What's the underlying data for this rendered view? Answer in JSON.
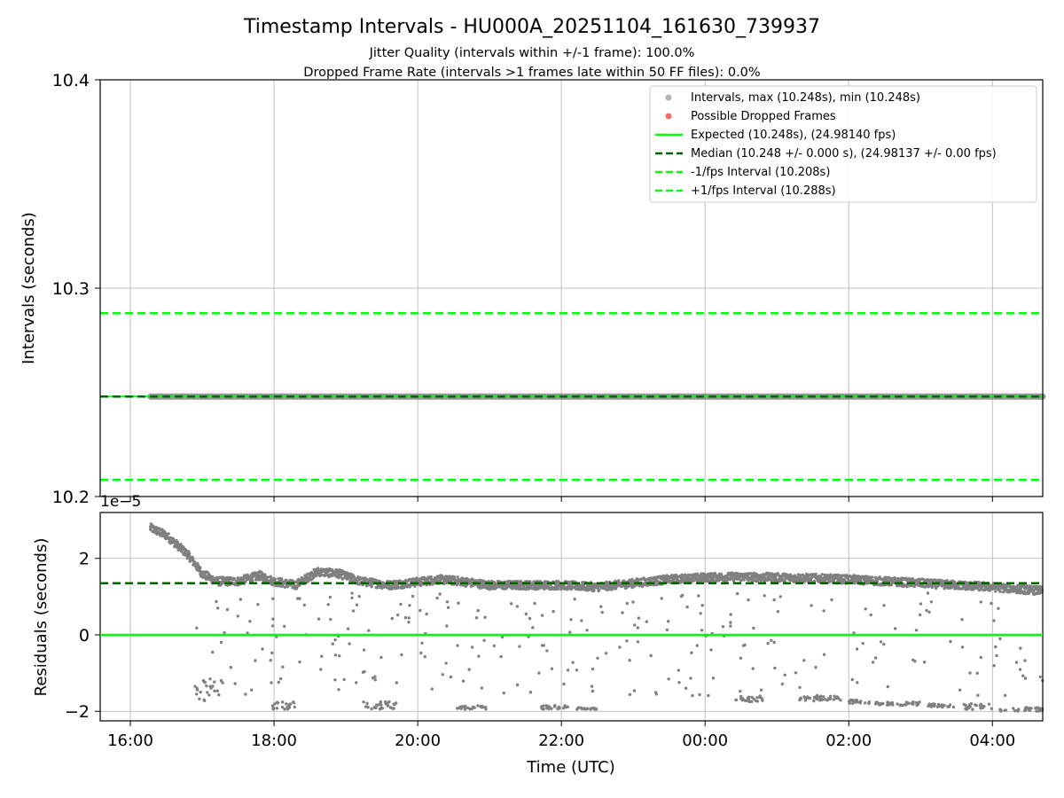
{
  "chart_data": [
    {
      "type": "scatter",
      "panel": "top",
      "title": "Timestamp Intervals - HU000A_20251104_161630_739937",
      "subtitle_lines": [
        "Jitter Quality (intervals within +/-1 frame): 100.0%",
        "Dropped Frame Rate (intervals >1 frames late within 50 FF files): 0.0%"
      ],
      "ylabel": "Intervals (seconds)",
      "ylim": [
        10.2,
        10.4
      ],
      "yticks": [
        10.2,
        10.3,
        10.4
      ],
      "ytick_labels": [
        "10.2",
        "10.3",
        "10.4"
      ],
      "grid": true,
      "legend_position": "top-right",
      "series": [
        {
          "name": "Intervals, max (10.248s), min (10.248s)",
          "kind": "points",
          "color": "#808080",
          "x_start_hours": 16.28,
          "x_end_hours": 28.7,
          "value": 10.248
        },
        {
          "name": "Possible Dropped Frames",
          "kind": "points",
          "color": "#f25b5b",
          "values": []
        },
        {
          "name": "Expected (10.248s), (24.98140 fps)",
          "kind": "hline",
          "style": "solid",
          "color": "#00ff00",
          "value": 10.248
        },
        {
          "name": "Median (10.248 +/- 0.000 s), (24.98137 +/- 0.00 fps)",
          "kind": "hline",
          "style": "dashed",
          "color": "#006400",
          "value": 10.248
        },
        {
          "name": "-1/fps Interval (10.208s)",
          "kind": "hline",
          "style": "dashed",
          "color": "#00ff00",
          "value": 10.208
        },
        {
          "name": "+1/fps Interval (10.288s)",
          "kind": "hline",
          "style": "dashed",
          "color": "#00ff00",
          "value": 10.288
        }
      ]
    },
    {
      "type": "scatter",
      "panel": "bottom",
      "xlabel": "Time (UTC)",
      "ylabel": "Residuals (seconds)",
      "offset_label": "1e−5",
      "x_unit": "hours since 00:00 on first day",
      "xlim": [
        15.58,
        28.7
      ],
      "xticks": [
        16,
        18,
        20,
        22,
        24,
        26,
        28
      ],
      "xtick_labels": [
        "16:00",
        "18:00",
        "20:00",
        "22:00",
        "00:00",
        "02:00",
        "04:00"
      ],
      "ylim": [
        -2.25,
        3.2
      ],
      "yticks": [
        -2,
        0,
        2
      ],
      "ytick_labels": [
        "−2",
        "0",
        "2"
      ],
      "y_scale_note": "values in units of 1e-5 seconds",
      "grid": true,
      "expected_residual": 0,
      "median_residual": 1.35,
      "trend_points": [
        [
          16.28,
          2.8
        ],
        [
          16.5,
          2.6
        ],
        [
          16.8,
          2.1
        ],
        [
          17.0,
          1.6
        ],
        [
          17.2,
          1.4
        ],
        [
          17.5,
          1.4
        ],
        [
          17.8,
          1.55
        ],
        [
          18.0,
          1.4
        ],
        [
          18.3,
          1.3
        ],
        [
          18.6,
          1.65
        ],
        [
          18.9,
          1.6
        ],
        [
          19.2,
          1.4
        ],
        [
          19.6,
          1.3
        ],
        [
          20.0,
          1.38
        ],
        [
          20.3,
          1.45
        ],
        [
          20.6,
          1.4
        ],
        [
          21.0,
          1.3
        ],
        [
          21.5,
          1.3
        ],
        [
          22.0,
          1.3
        ],
        [
          22.5,
          1.25
        ],
        [
          23.0,
          1.35
        ],
        [
          23.5,
          1.45
        ],
        [
          24.0,
          1.5
        ],
        [
          24.5,
          1.52
        ],
        [
          25.0,
          1.5
        ],
        [
          25.5,
          1.48
        ],
        [
          26.0,
          1.45
        ],
        [
          26.5,
          1.4
        ],
        [
          27.0,
          1.35
        ],
        [
          27.5,
          1.3
        ],
        [
          28.0,
          1.25
        ],
        [
          28.7,
          1.15
        ]
      ],
      "low_clusters": [
        [
          16.9,
          17.3,
          -1.15,
          -1.75
        ],
        [
          17.95,
          18.3,
          -1.75,
          -1.95
        ],
        [
          19.2,
          19.7,
          -1.75,
          -1.95
        ],
        [
          20.55,
          20.95,
          -1.85,
          -1.95
        ],
        [
          21.7,
          22.1,
          -1.85,
          -1.95
        ],
        [
          22.2,
          22.5,
          -1.9,
          -1.95
        ],
        [
          24.4,
          24.8,
          -1.6,
          -1.75
        ],
        [
          25.3,
          25.9,
          -1.6,
          -1.75
        ],
        [
          26.0,
          26.3,
          -1.7,
          -1.8
        ],
        [
          26.35,
          27.0,
          -1.75,
          -1.85
        ],
        [
          27.1,
          27.5,
          -1.8,
          -1.9
        ],
        [
          27.6,
          28.0,
          -1.8,
          -1.95
        ],
        [
          28.1,
          28.7,
          -1.9,
          -2.0
        ]
      ],
      "series": [
        {
          "name": "Residuals",
          "kind": "points",
          "color": "#808080"
        },
        {
          "name": "Expected",
          "kind": "hline",
          "style": "solid",
          "color": "#00ff00",
          "value": 0
        },
        {
          "name": "Median",
          "kind": "hline",
          "style": "dashed",
          "color": "#006400",
          "value": 1.35
        }
      ]
    }
  ]
}
